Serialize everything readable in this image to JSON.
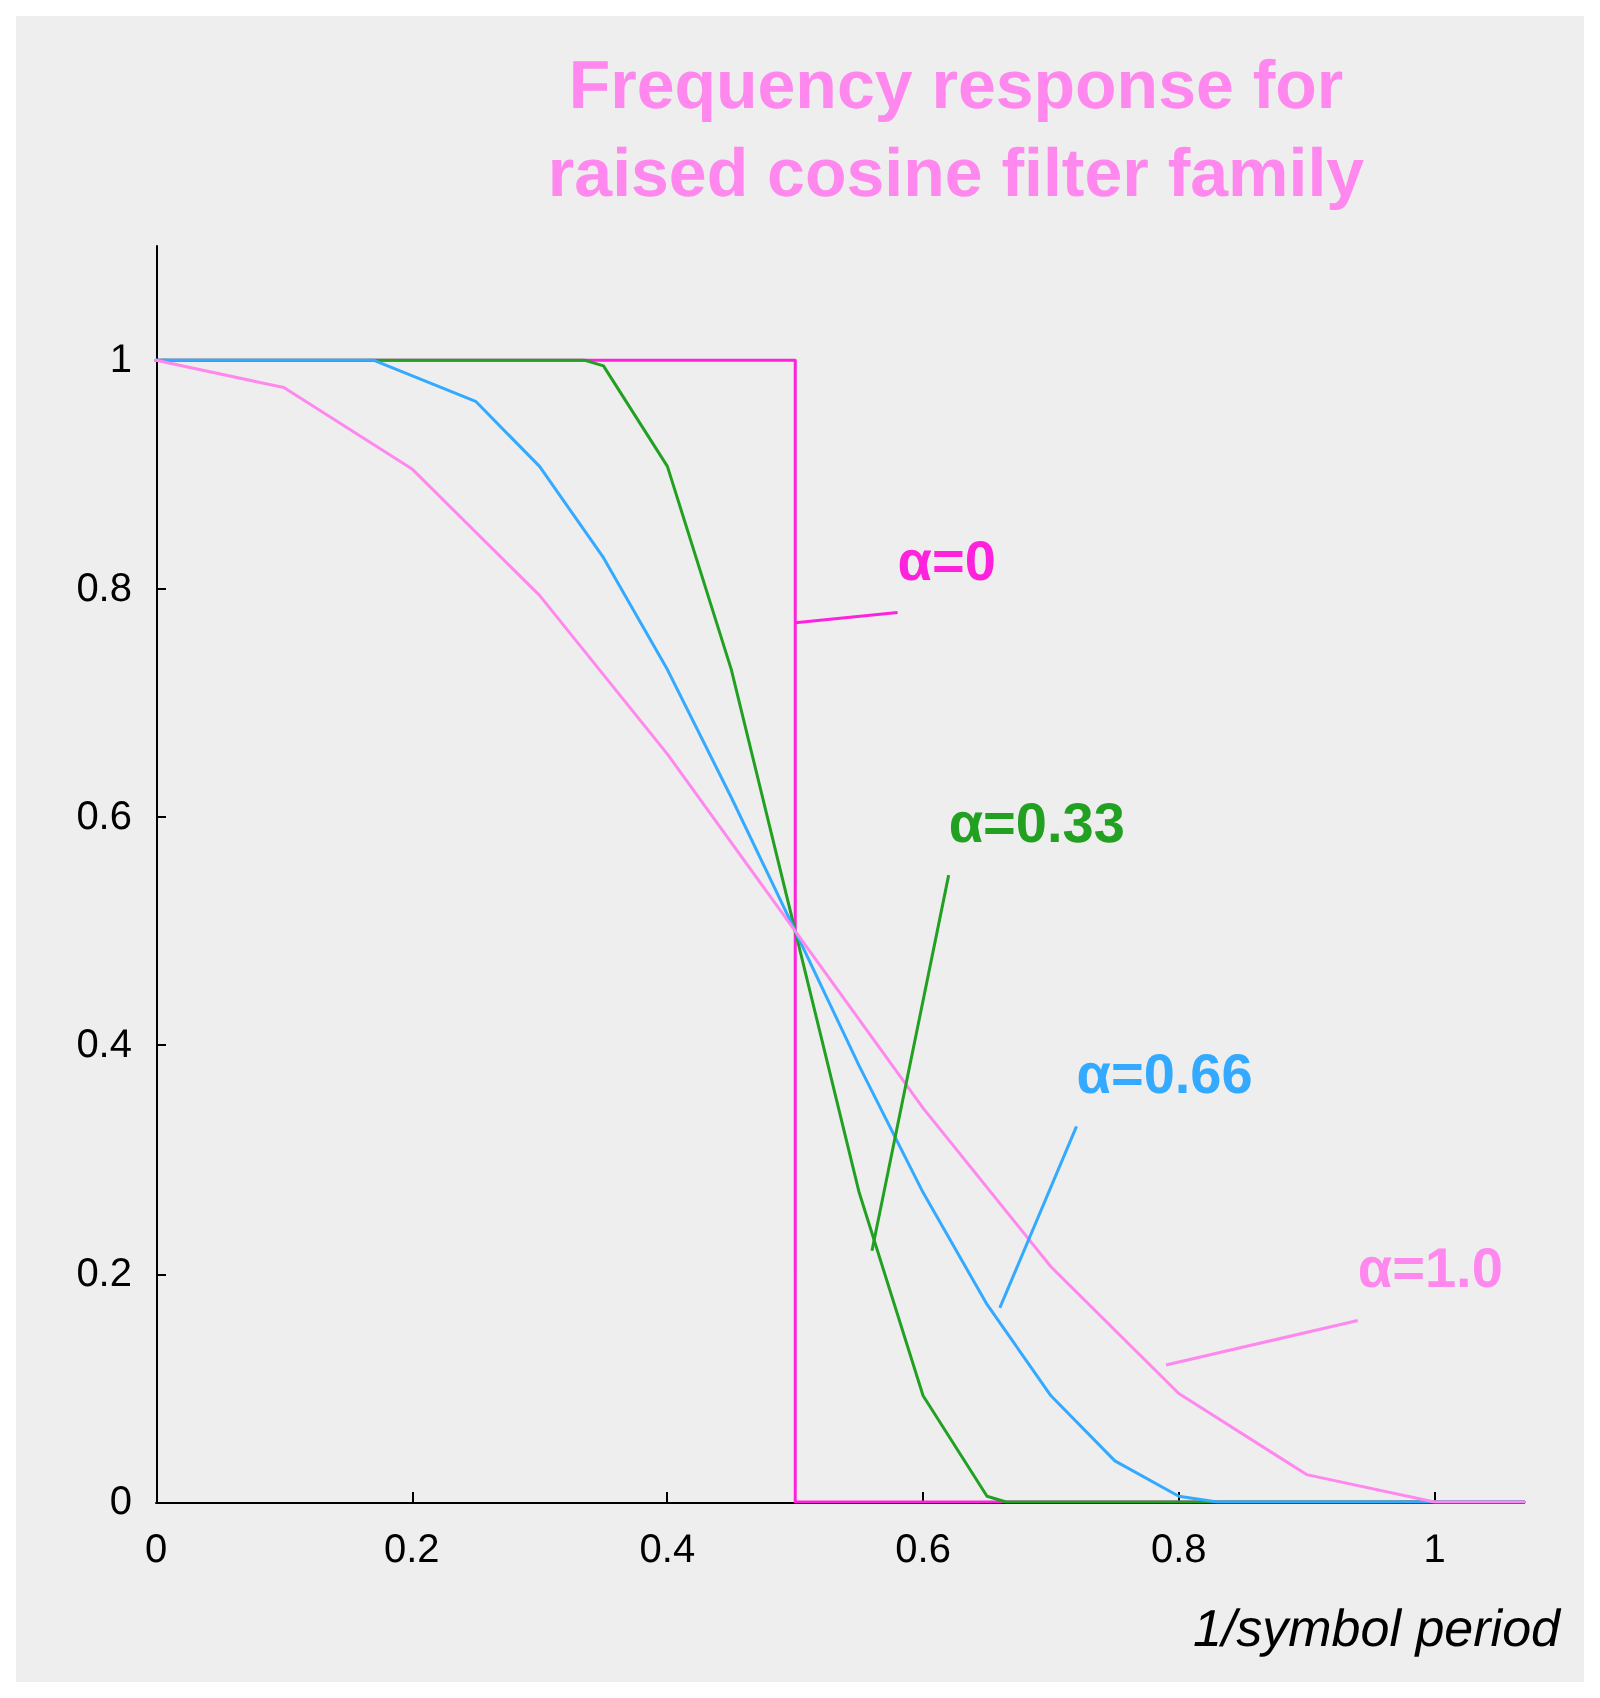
{
  "chart_data": {
    "type": "line",
    "title": "Frequency response for\nraised cosine filter family",
    "xlabel": "1/symbol period",
    "xlim": [
      0,
      1.07
    ],
    "ylim": [
      0,
      1.1
    ],
    "xticks": [
      0,
      0.2,
      0.4,
      0.6,
      0.8,
      1
    ],
    "yticks": [
      0,
      0.2,
      0.4,
      0.6,
      0.8,
      1
    ],
    "grid": false,
    "legend": false,
    "marker": "none",
    "line_style": "solid",
    "series": [
      {
        "name": "α=0",
        "color": "#ff22dd",
        "x": [
          0,
          0.5,
          0.5,
          1.07
        ],
        "values": [
          1,
          1,
          0,
          0
        ]
      },
      {
        "name": "α=0.33",
        "color": "#22a022",
        "x": [
          0,
          0.335,
          0.35,
          0.4,
          0.45,
          0.5,
          0.55,
          0.6,
          0.65,
          0.665,
          1.07
        ],
        "values": [
          1,
          1,
          0.995,
          0.907,
          0.729,
          0.5,
          0.271,
          0.093,
          0.005,
          0,
          0
        ]
      },
      {
        "name": "α=0.66",
        "color": "#33aaff",
        "x": [
          0,
          0.17,
          0.25,
          0.3,
          0.35,
          0.4,
          0.45,
          0.5,
          0.55,
          0.6,
          0.65,
          0.7,
          0.75,
          0.8,
          0.83,
          1.07
        ],
        "values": [
          1,
          1,
          0.964,
          0.907,
          0.827,
          0.729,
          0.617,
          0.5,
          0.382,
          0.271,
          0.173,
          0.093,
          0.036,
          0.005,
          0,
          0
        ]
      },
      {
        "name": "α=1.0",
        "color": "#ff88ee",
        "x": [
          0,
          0.1,
          0.2,
          0.3,
          0.4,
          0.5,
          0.6,
          0.7,
          0.8,
          0.9,
          1,
          1.07
        ],
        "values": [
          1,
          0.976,
          0.905,
          0.794,
          0.655,
          0.5,
          0.345,
          0.206,
          0.095,
          0.024,
          0,
          0
        ]
      }
    ]
  }
}
